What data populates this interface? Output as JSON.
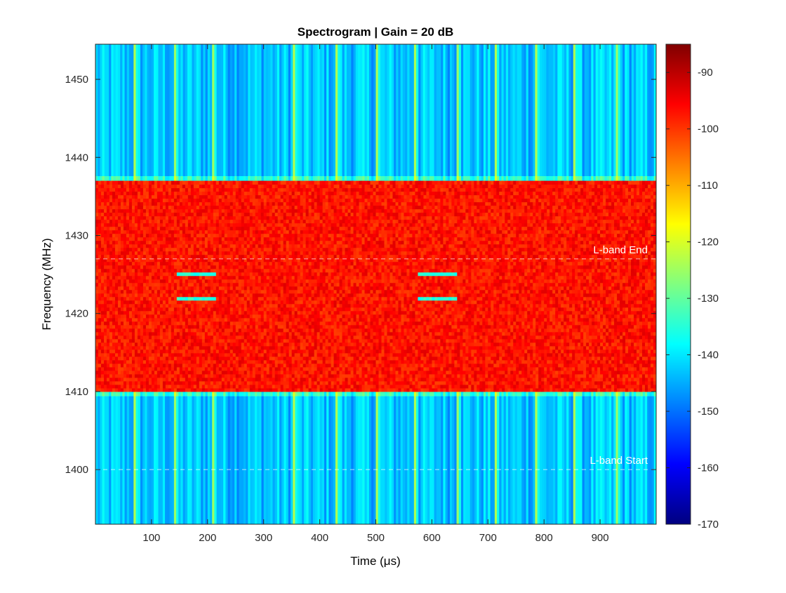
{
  "chart_data": {
    "type": "heatmap",
    "title": "Spectrogram | Gain = 20 dB",
    "xlabel": "Time (μs)",
    "ylabel": "Frequency (MHz)",
    "xlim": [
      0,
      1000
    ],
    "ylim": [
      1393,
      1454.5
    ],
    "x_ticks": [
      100,
      200,
      300,
      400,
      500,
      600,
      700,
      800,
      900
    ],
    "y_ticks": [
      1400,
      1410,
      1420,
      1430,
      1440,
      1450
    ],
    "colormap": "jet",
    "colorbar": {
      "range": [
        -170,
        -85
      ],
      "ticks": [
        -90,
        -100,
        -110,
        -120,
        -130,
        -140,
        -150,
        -160,
        -170
      ]
    },
    "regions": {
      "band": {
        "y": [
          1410,
          1437
        ],
        "level_dB": -97
      },
      "background_level_dB": -143
    },
    "burst_columns_us": [
      70,
      143,
      210,
      355,
      428,
      500,
      570,
      645,
      715,
      785,
      855,
      928
    ],
    "signal_bursts": [
      {
        "t": [
          145,
          210
        ],
        "f": 1425,
        "level_dB": -138
      },
      {
        "t": [
          145,
          210
        ],
        "f": 1422,
        "level_dB": -138
      },
      {
        "t": [
          575,
          640
        ],
        "f": 1425,
        "level_dB": -138
      },
      {
        "t": [
          575,
          640
        ],
        "f": 1422,
        "level_dB": -138
      }
    ],
    "annotations": [
      {
        "text": "L-band End",
        "y": 1427
      },
      {
        "text": "L-band Start",
        "y": 1400
      }
    ],
    "grid": false
  }
}
